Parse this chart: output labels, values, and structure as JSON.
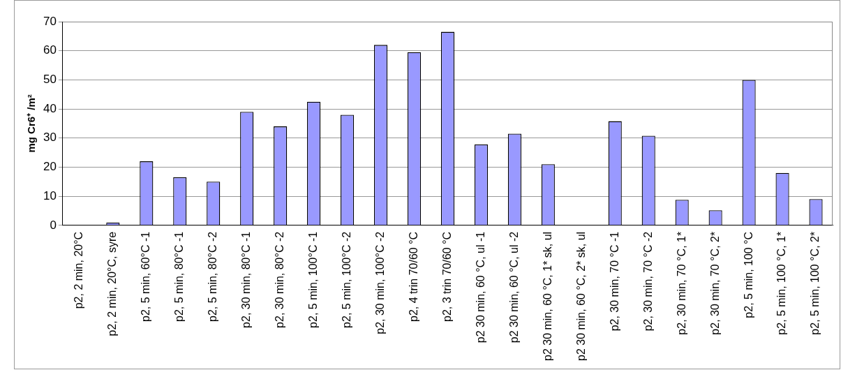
{
  "chart_data": {
    "type": "bar",
    "ylabel": "mg Cr6⁺ /m²",
    "categories": [
      "p2, 2 min, 20°C",
      "p2, 2 min, 20°C, syre",
      "p2, 5 min, 60°C -1",
      "p2, 5 min, 80°C -1",
      "p2, 5 min, 80°C -2",
      "p2, 30 min, 80°C -1",
      "p2, 30 min, 80°C -2",
      "p2, 5 min, 100°C -1",
      "p2, 5 min, 100°C -2",
      "p2, 30 min, 100°C -2",
      "p2, 4 trin 70/60 °C",
      "p2, 3 trin 70/60 °C",
      "p2 30 min, 60 °C, ul -1",
      "p2 30 min, 60 °C, ul -2",
      "p2 30 min, 60 °C, 1* sk, ul",
      "p2 30 min, 60 °C, 2* sk, ul",
      "p2, 30 min, 70 °C -1",
      "p2, 30 min, 70 °C -2",
      "p2, 30 min, 70 °C, 1*",
      "p2, 30 min, 70 °C, 2*",
      "p2, 5 min, 100 °C",
      "p2, 5 min, 100 °C, 1*",
      "p2, 5 min, 100 °C, 2*"
    ],
    "values": [
      0,
      1,
      22,
      16.5,
      15,
      39,
      34,
      42.5,
      38,
      62,
      59.5,
      66.5,
      27.8,
      31.5,
      21,
      0,
      35.8,
      30.8,
      8.8,
      5.2,
      50,
      18,
      9
    ],
    "color": "#9999ff",
    "ylim": [
      0,
      70
    ],
    "yticks": [
      0,
      10,
      20,
      30,
      40,
      50,
      60,
      70
    ],
    "grid": "y",
    "legend": false
  }
}
